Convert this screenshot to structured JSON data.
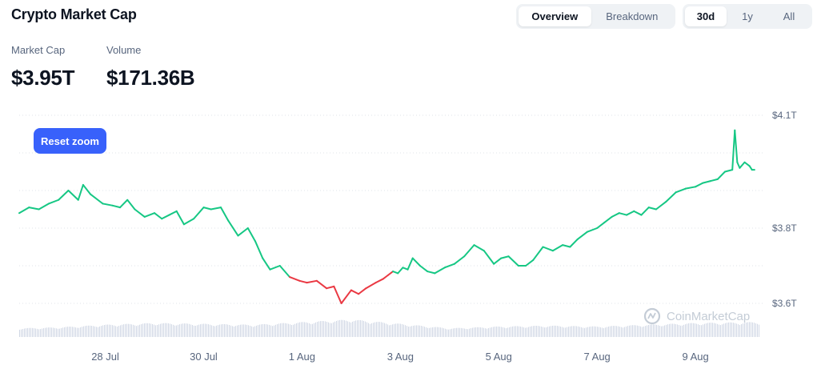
{
  "header": {
    "title": "Crypto Market Cap",
    "view_tabs": [
      {
        "label": "Overview",
        "active": true
      },
      {
        "label": "Breakdown",
        "active": false
      }
    ],
    "range_tabs": [
      {
        "label": "30d",
        "active": true
      },
      {
        "label": "1y",
        "active": false
      },
      {
        "label": "All",
        "active": false
      }
    ]
  },
  "stats": {
    "market_cap_label": "Market Cap",
    "market_cap_value": "$3.95T",
    "volume_label": "Volume",
    "volume_value": "$171.36B"
  },
  "reset_zoom_label": "Reset zoom",
  "watermark": {
    "text": "CoinMarketCap",
    "icon": "coinmarketcap-logo-icon"
  },
  "colors": {
    "up": "#16c784",
    "down": "#ea3943",
    "button": "#3861fb",
    "volume": "#cfd6e4"
  },
  "chart_data": {
    "type": "line",
    "title": "",
    "xlabel": "",
    "ylabel": "",
    "y_unit": "USD trillions",
    "yticks": [
      {
        "value": 4.1,
        "label": "$4.1T"
      },
      {
        "value": 3.8,
        "label": "$3.8T"
      },
      {
        "value": 3.6,
        "label": "$3.6T"
      }
    ],
    "ylim": [
      3.53,
      4.16
    ],
    "xticks": [
      {
        "x": 1.0,
        "label": "28 Jul"
      },
      {
        "x": 3.0,
        "label": "30 Jul"
      },
      {
        "x": 5.0,
        "label": "1 Aug"
      },
      {
        "x": 7.0,
        "label": "3 Aug"
      },
      {
        "x": 9.0,
        "label": "5 Aug"
      },
      {
        "x": 11.0,
        "label": "7 Aug"
      },
      {
        "x": 13.0,
        "label": "9 Aug"
      }
    ],
    "x_unit": "days (0 = 27 Jul 00:00)",
    "xlim": [
      -0.75,
      14.3
    ],
    "grid": "horizontal dotted",
    "series": [
      {
        "name": "",
        "x": [
          -0.75,
          -0.55,
          -0.35,
          -0.15,
          0.05,
          0.25,
          0.45,
          0.55,
          0.7,
          0.95,
          1.15,
          1.3,
          1.45,
          1.6,
          1.8,
          2.0,
          2.15,
          2.3,
          2.45,
          2.6,
          2.8,
          3.0,
          3.15,
          3.35,
          3.5,
          3.7,
          3.9,
          4.05,
          4.2,
          4.35,
          4.55,
          4.75,
          4.95,
          5.1,
          5.3,
          5.5,
          5.65,
          5.8,
          6.0,
          6.15,
          6.3,
          6.5,
          6.65,
          6.75,
          6.85,
          6.95,
          7.05,
          7.15,
          7.25,
          7.4,
          7.55,
          7.7,
          7.9,
          8.1,
          8.3,
          8.5,
          8.7,
          8.9,
          9.05,
          9.2,
          9.4,
          9.55,
          9.7,
          9.9,
          10.1,
          10.3,
          10.45,
          10.6,
          10.8,
          11.0,
          11.15,
          11.3,
          11.45,
          11.6,
          11.75,
          11.9,
          12.05,
          12.2,
          12.4,
          12.6,
          12.8,
          13.0,
          13.15,
          13.3,
          13.45,
          13.6,
          13.75,
          13.8,
          13.85,
          13.9,
          14.0,
          14.1,
          14.15,
          14.2
        ],
        "y": [
          3.84,
          3.855,
          3.85,
          3.865,
          3.875,
          3.9,
          3.875,
          3.915,
          3.89,
          3.865,
          3.86,
          3.855,
          3.875,
          3.85,
          3.83,
          3.84,
          3.825,
          3.835,
          3.845,
          3.81,
          3.825,
          3.855,
          3.85,
          3.855,
          3.82,
          3.78,
          3.8,
          3.765,
          3.72,
          3.69,
          3.7,
          3.67,
          3.66,
          3.655,
          3.66,
          3.64,
          3.645,
          3.6,
          3.635,
          3.625,
          3.64,
          3.655,
          3.665,
          3.675,
          3.685,
          3.68,
          3.695,
          3.69,
          3.72,
          3.7,
          3.685,
          3.68,
          3.695,
          3.705,
          3.725,
          3.755,
          3.74,
          3.705,
          3.72,
          3.725,
          3.7,
          3.7,
          3.715,
          3.75,
          3.74,
          3.755,
          3.75,
          3.77,
          3.79,
          3.8,
          3.815,
          3.83,
          3.84,
          3.835,
          3.845,
          3.835,
          3.855,
          3.85,
          3.87,
          3.895,
          3.905,
          3.91,
          3.92,
          3.925,
          3.93,
          3.95,
          3.955,
          4.06,
          3.975,
          3.96,
          3.975,
          3.965,
          3.955,
          3.955
        ]
      }
    ],
    "reference_value": 3.68,
    "volume_series": {
      "x": [
        -0.75,
        0.0,
        1.0,
        2.0,
        3.0,
        4.0,
        5.0,
        6.0,
        7.0,
        8.0,
        9.0,
        10.0,
        11.0,
        12.0,
        13.0,
        14.2
      ],
      "values": [
        0.1,
        0.11,
        0.14,
        0.16,
        0.15,
        0.14,
        0.17,
        0.2,
        0.15,
        0.1,
        0.12,
        0.13,
        0.12,
        0.14,
        0.16,
        0.17
      ]
    }
  }
}
